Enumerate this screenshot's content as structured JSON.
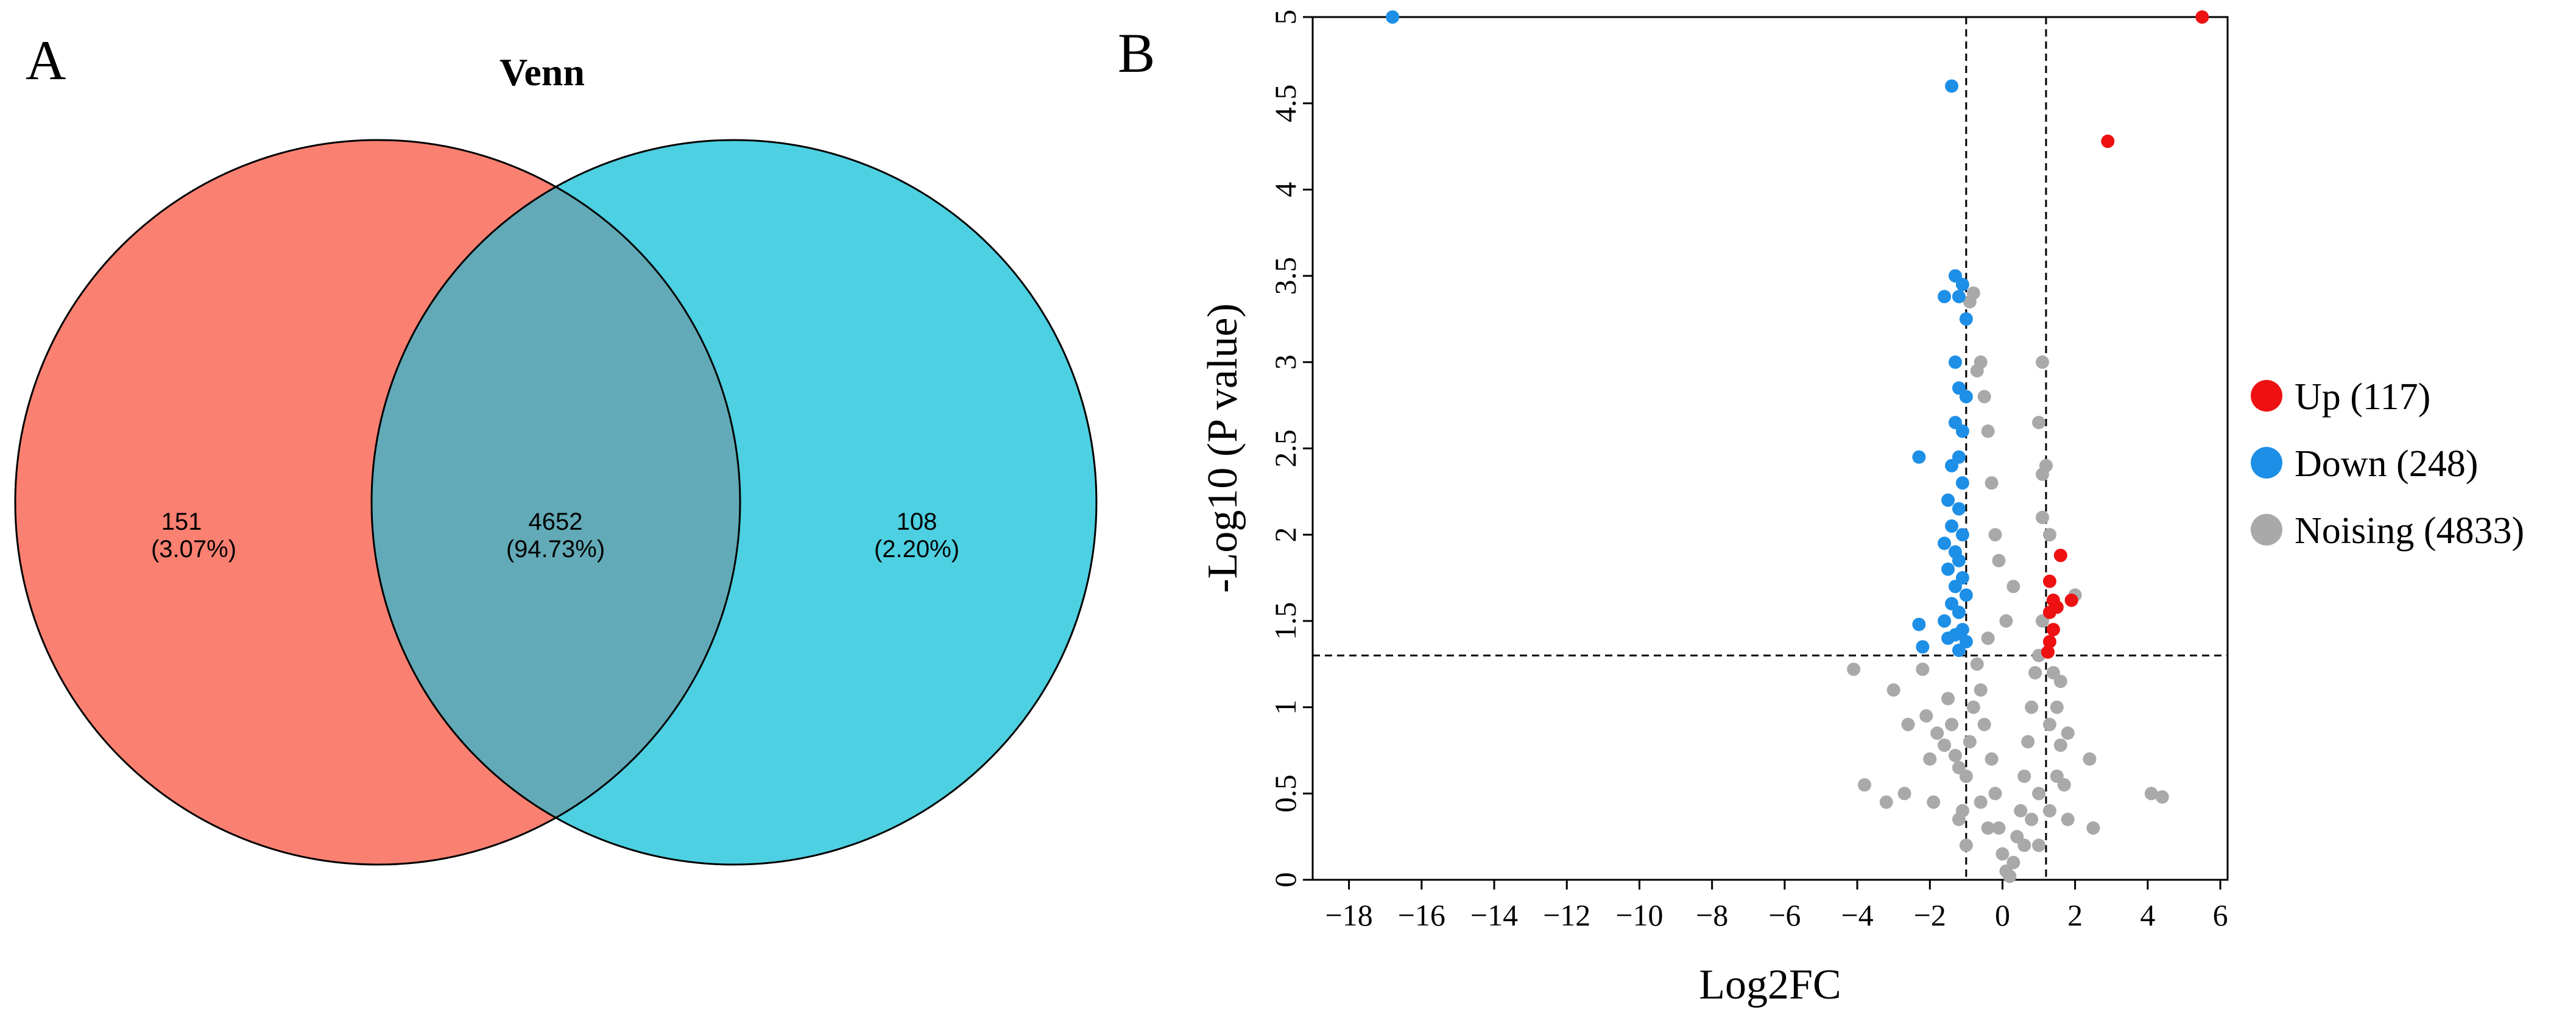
{
  "panels": {
    "a_label": "A",
    "b_label": "B"
  },
  "venn": {
    "title": "Venn",
    "left_only": {
      "count": "151",
      "pct": "(3.07%)"
    },
    "overlap": {
      "count": "4652",
      "pct": "(94.73%)"
    },
    "right_only": {
      "count": "108",
      "pct": "(2.20%)"
    },
    "colors": {
      "left": "#fa8072",
      "right": "#4dd0e1",
      "overlap": "#62aab7"
    }
  },
  "chart_data": {
    "type": "scatter",
    "title": "",
    "xlabel": "Log2FC",
    "ylabel": "-Log10 (P value)",
    "xlim": [
      -19.0,
      6.2
    ],
    "ylim": [
      0,
      5
    ],
    "xticks": [
      -18,
      -16,
      -14,
      -12,
      -10,
      -8,
      -6,
      -4,
      -2,
      0,
      2,
      4,
      6
    ],
    "xtick_labels": [
      "−18",
      "−16",
      "−14",
      "−12",
      "−10",
      "−8",
      "−6",
      "−4",
      "−2",
      "0",
      "2",
      "4",
      "6"
    ],
    "yticks": [
      0,
      0.5,
      1,
      1.5,
      2,
      2.5,
      3,
      3.5,
      4,
      4.5,
      5
    ],
    "ytick_labels": [
      "0",
      "0.5",
      "1",
      "1.5",
      "2",
      "2.5",
      "3",
      "3.5",
      "4",
      "4.5",
      "5"
    ],
    "thresholds": {
      "log2fc": [
        -1,
        1.2
      ],
      "neglog10p": 1.3
    },
    "legend": {
      "position": "right",
      "entries": [
        {
          "label": "Up (117)",
          "color": "#ee1111"
        },
        {
          "label": "Down (248)",
          "color": "#1e8fe6"
        },
        {
          "label": "Noising (4833)",
          "color": "#a9a9a9"
        }
      ]
    },
    "series": [
      {
        "name": "Up",
        "color": "#ee1111",
        "points": [
          [
            5.5,
            5.0
          ],
          [
            2.9,
            4.28
          ],
          [
            1.6,
            1.88
          ],
          [
            1.3,
            1.73
          ],
          [
            1.9,
            1.62
          ],
          [
            1.4,
            1.62
          ],
          [
            1.5,
            1.58
          ],
          [
            1.3,
            1.55
          ],
          [
            1.4,
            1.45
          ],
          [
            1.3,
            1.38
          ],
          [
            1.25,
            1.32
          ]
        ]
      },
      {
        "name": "Down",
        "color": "#1e8fe6",
        "points": [
          [
            -16.8,
            5.0
          ],
          [
            -1.4,
            4.6
          ],
          [
            -1.3,
            3.5
          ],
          [
            -1.1,
            3.45
          ],
          [
            -1.6,
            3.38
          ],
          [
            -1.2,
            3.38
          ],
          [
            -1.0,
            3.25
          ],
          [
            -1.3,
            3.0
          ],
          [
            -1.2,
            2.85
          ],
          [
            -1.0,
            2.8
          ],
          [
            -1.3,
            2.65
          ],
          [
            -1.1,
            2.6
          ],
          [
            -2.3,
            2.45
          ],
          [
            -1.2,
            2.45
          ],
          [
            -1.4,
            2.4
          ],
          [
            -1.1,
            2.3
          ],
          [
            -1.5,
            2.2
          ],
          [
            -1.2,
            2.15
          ],
          [
            -1.4,
            2.05
          ],
          [
            -1.1,
            2.0
          ],
          [
            -1.6,
            1.95
          ],
          [
            -1.3,
            1.9
          ],
          [
            -1.2,
            1.85
          ],
          [
            -1.5,
            1.8
          ],
          [
            -1.1,
            1.75
          ],
          [
            -1.3,
            1.7
          ],
          [
            -1.0,
            1.65
          ],
          [
            -1.4,
            1.6
          ],
          [
            -1.2,
            1.55
          ],
          [
            -2.3,
            1.48
          ],
          [
            -1.6,
            1.5
          ],
          [
            -1.1,
            1.45
          ],
          [
            -1.3,
            1.42
          ],
          [
            -2.2,
            1.35
          ],
          [
            -1.5,
            1.4
          ],
          [
            -1.2,
            1.33
          ],
          [
            -1.0,
            1.38
          ]
        ]
      },
      {
        "name": "Noising",
        "color": "#a9a9a9",
        "points": [
          [
            -0.8,
            3.4
          ],
          [
            -0.9,
            3.35
          ],
          [
            -0.6,
            3.0
          ],
          [
            -0.7,
            2.95
          ],
          [
            1.1,
            3.0
          ],
          [
            -0.5,
            2.8
          ],
          [
            -0.4,
            2.6
          ],
          [
            -0.3,
            2.3
          ],
          [
            1.0,
            2.65
          ],
          [
            1.1,
            2.35
          ],
          [
            1.2,
            2.4
          ],
          [
            -0.2,
            2.0
          ],
          [
            1.1,
            2.1
          ],
          [
            -0.1,
            1.85
          ],
          [
            0.3,
            1.7
          ],
          [
            1.3,
            2.0
          ],
          [
            2.0,
            1.65
          ],
          [
            0.1,
            1.5
          ],
          [
            -0.4,
            1.4
          ],
          [
            1.1,
            1.5
          ],
          [
            -4.1,
            1.22
          ],
          [
            -3.0,
            1.1
          ],
          [
            -2.2,
            1.22
          ],
          [
            -1.5,
            1.05
          ],
          [
            -2.1,
            0.95
          ],
          [
            -2.6,
            0.9
          ],
          [
            -1.4,
            0.9
          ],
          [
            -1.8,
            0.85
          ],
          [
            -1.6,
            0.78
          ],
          [
            -1.3,
            0.72
          ],
          [
            -1.2,
            0.65
          ],
          [
            -2.0,
            0.7
          ],
          [
            1.4,
            1.2
          ],
          [
            1.6,
            1.15
          ],
          [
            1.5,
            1.0
          ],
          [
            1.3,
            0.9
          ],
          [
            1.8,
            0.85
          ],
          [
            1.6,
            0.78
          ],
          [
            2.4,
            0.7
          ],
          [
            1.5,
            0.6
          ],
          [
            1.7,
            0.55
          ],
          [
            4.1,
            0.5
          ],
          [
            4.4,
            0.48
          ],
          [
            -3.8,
            0.55
          ],
          [
            -3.2,
            0.45
          ],
          [
            -2.7,
            0.5
          ],
          [
            -1.9,
            0.45
          ],
          [
            -1.2,
            0.35
          ],
          [
            1.3,
            0.4
          ],
          [
            1.8,
            0.35
          ],
          [
            2.5,
            0.3
          ],
          [
            -1.0,
            0.2
          ],
          [
            1.0,
            0.2
          ],
          [
            -0.6,
            1.1
          ],
          [
            -0.5,
            0.9
          ],
          [
            -0.3,
            0.7
          ],
          [
            -0.2,
            0.5
          ],
          [
            -0.1,
            0.3
          ],
          [
            0.0,
            0.15
          ],
          [
            0.1,
            0.05
          ],
          [
            0.2,
            0.02
          ],
          [
            0.3,
            0.1
          ],
          [
            0.4,
            0.25
          ],
          [
            0.5,
            0.4
          ],
          [
            0.6,
            0.6
          ],
          [
            0.7,
            0.8
          ],
          [
            0.8,
            1.0
          ],
          [
            0.9,
            1.2
          ],
          [
            1.0,
            1.3
          ],
          [
            -0.7,
            1.25
          ],
          [
            -0.8,
            1.0
          ],
          [
            -0.9,
            0.8
          ],
          [
            -1.0,
            0.6
          ],
          [
            -1.1,
            0.4
          ],
          [
            0.6,
            0.2
          ],
          [
            0.8,
            0.35
          ],
          [
            1.0,
            0.5
          ],
          [
            -0.4,
            0.3
          ],
          [
            -0.6,
            0.45
          ]
        ]
      }
    ]
  }
}
